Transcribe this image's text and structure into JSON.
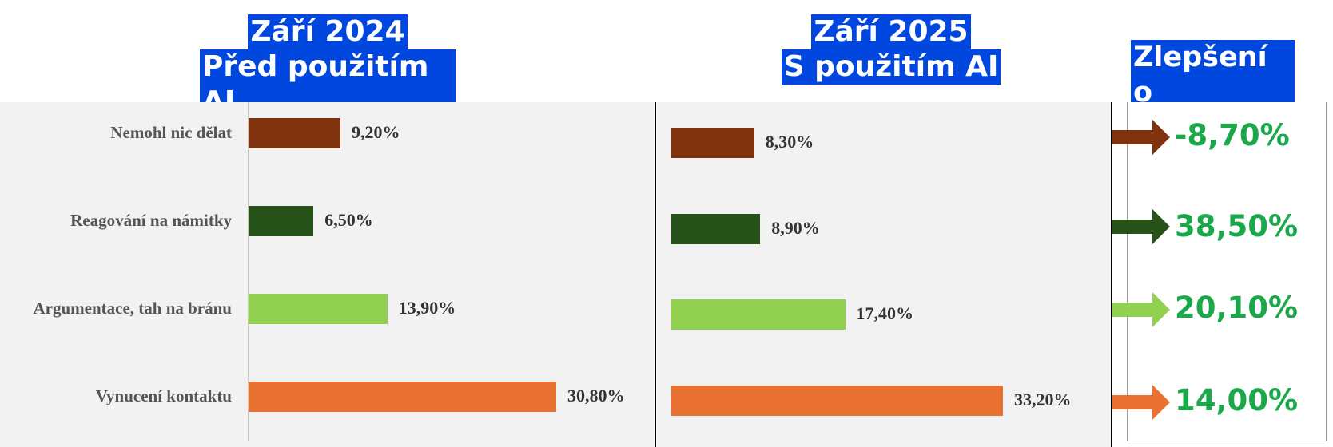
{
  "header_left": {
    "line1": "Září 2024",
    "line2": "Před použitím AI"
  },
  "header_right": {
    "line1": "Září 2025",
    "line2": "S použitím AI"
  },
  "header_improve": "Zlepšení o",
  "chart_data": {
    "type": "bar",
    "orientation": "horizontal",
    "categories": [
      "Nemohl nic dělat",
      "Reagování na námitky",
      "Argumentace, tah na bránu",
      "Vynucení kontaktu"
    ],
    "series": [
      {
        "values": [
          9.2,
          6.5,
          13.9,
          30.8
        ],
        "labels": [
          "9,20%",
          "6,50%",
          "13,90%",
          "30,80%"
        ]
      },
      {
        "values": [
          8.3,
          8.9,
          17.4,
          33.2
        ],
        "labels": [
          "8,30%",
          "8,90%",
          "17,40%",
          "33,20%"
        ]
      }
    ],
    "improvement": {
      "values": [
        -8.7,
        38.5,
        20.1,
        14.0
      ],
      "labels": [
        "-8,70%",
        "38,50%",
        "20,10%",
        "14,00%"
      ]
    },
    "colors": [
      "#7f320d",
      "#27521a",
      "#92d050",
      "#e97132"
    ],
    "improvement_color": "#1aa84a",
    "xlim": [
      0,
      35
    ]
  }
}
